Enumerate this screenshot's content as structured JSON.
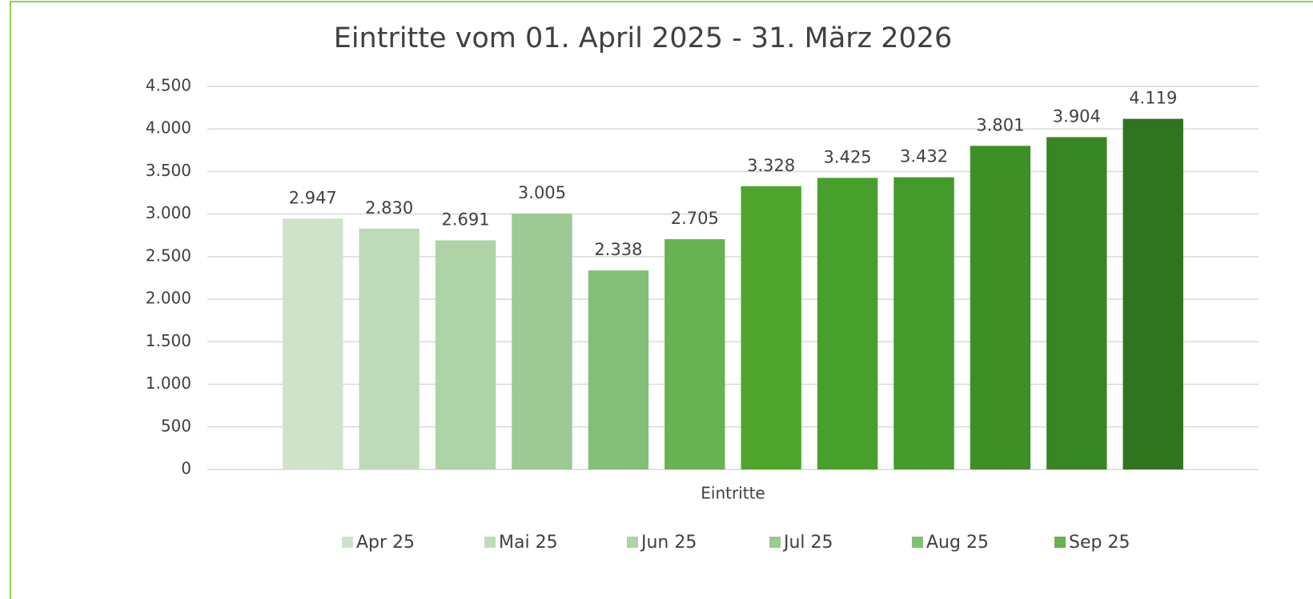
{
  "chart_data": {
    "type": "bar",
    "title": "Eintritte vom 01. April 2025 - 31. März 2026",
    "categories": [
      "Eintritte"
    ],
    "series": [
      {
        "name": "Apr 25",
        "color": "#cfe3cb",
        "values": [
          2947
        ],
        "value_labels": [
          "2.947"
        ]
      },
      {
        "name": "Mai 25",
        "color": "#bfdab9",
        "values": [
          2830
        ],
        "value_labels": [
          "2.830"
        ]
      },
      {
        "name": "Jun 25",
        "color": "#aed3a6",
        "values": [
          2691
        ],
        "value_labels": [
          "2.691"
        ]
      },
      {
        "name": "Jul 25",
        "color": "#9cc994",
        "values": [
          3005
        ],
        "value_labels": [
          "3.005"
        ]
      },
      {
        "name": "Aug 25",
        "color": "#84bf79",
        "values": [
          2338
        ],
        "value_labels": [
          "2.338"
        ]
      },
      {
        "name": "Sep 25",
        "color": "#67b251",
        "values": [
          2705
        ],
        "value_labels": [
          "2.705"
        ]
      },
      {
        "name": null,
        "color": "#4fa62f",
        "values": [
          3328
        ],
        "value_labels": [
          "3.328"
        ]
      },
      {
        "name": null,
        "color": "#48a02c",
        "values": [
          3425
        ],
        "value_labels": [
          "3.425"
        ]
      },
      {
        "name": null,
        "color": "#449a2a",
        "values": [
          3432
        ],
        "value_labels": [
          "3.432"
        ]
      },
      {
        "name": null,
        "color": "#3e8f26",
        "values": [
          3801
        ],
        "value_labels": [
          "3.801"
        ]
      },
      {
        "name": null,
        "color": "#388523",
        "values": [
          3904
        ],
        "value_labels": [
          "3.904"
        ]
      },
      {
        "name": null,
        "color": "#307420",
        "values": [
          4119
        ],
        "value_labels": [
          "4.119"
        ]
      }
    ],
    "ylim": [
      0,
      4500
    ],
    "yticks": [
      0,
      500,
      {
        "value": 1000,
        "label": "1.000"
      },
      {
        "value": 1500,
        "label": "1.500"
      },
      {
        "value": 2000,
        "label": "2.000"
      },
      {
        "value": 2500,
        "label": "2.500"
      },
      {
        "value": 3000,
        "label": "3.000"
      },
      {
        "value": 3500,
        "label": "3.500"
      },
      {
        "value": 4000,
        "label": "4.000"
      },
      {
        "value": 4500,
        "label": "4.500"
      }
    ],
    "grid": true,
    "legend": "bottom"
  }
}
